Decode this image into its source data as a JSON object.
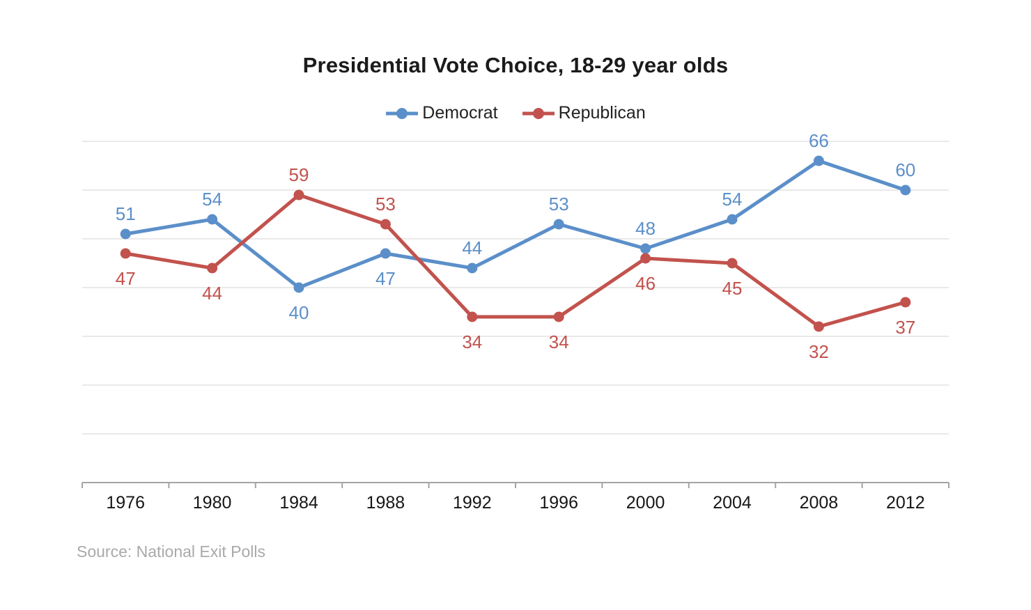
{
  "title": "Presidential Vote Choice, 18-29 year olds",
  "legend": [
    {
      "label": "Democrat",
      "color": "#5b8fc9"
    },
    {
      "label": "Republican",
      "color": "#c2524d"
    }
  ],
  "source": "Source: National Exit Polls",
  "colors": {
    "democrat": "#5b8fc9",
    "republican": "#c2524d",
    "gridline": "#e2e2e2",
    "axis": "#a3a3a3",
    "axis_text": "#161616",
    "title_text": "#1b1b1b",
    "source_text": "#a9a9a9"
  },
  "chart_data": {
    "type": "line",
    "title": "Presidential Vote Choice, 18-29 year olds",
    "categories": [
      "1976",
      "1980",
      "1984",
      "1988",
      "1992",
      "1996",
      "2000",
      "2004",
      "2008",
      "2012"
    ],
    "series": [
      {
        "name": "Democrat",
        "color": "#5b8fc9",
        "values": [
          51,
          54,
          40,
          47,
          44,
          53,
          48,
          54,
          66,
          60
        ]
      },
      {
        "name": "Republican",
        "color": "#c2524d",
        "values": [
          47,
          44,
          59,
          53,
          34,
          34,
          46,
          45,
          32,
          37
        ]
      }
    ],
    "xlabel": "",
    "ylabel": "",
    "ylim": [
      0,
      70
    ],
    "gridlines": [
      10,
      20,
      30,
      40,
      50,
      60,
      70
    ],
    "grid": "horizontal-only",
    "y_axis_labels_visible": false,
    "legend_position": "top",
    "data_labels": true,
    "source": "Source: National Exit Polls"
  }
}
